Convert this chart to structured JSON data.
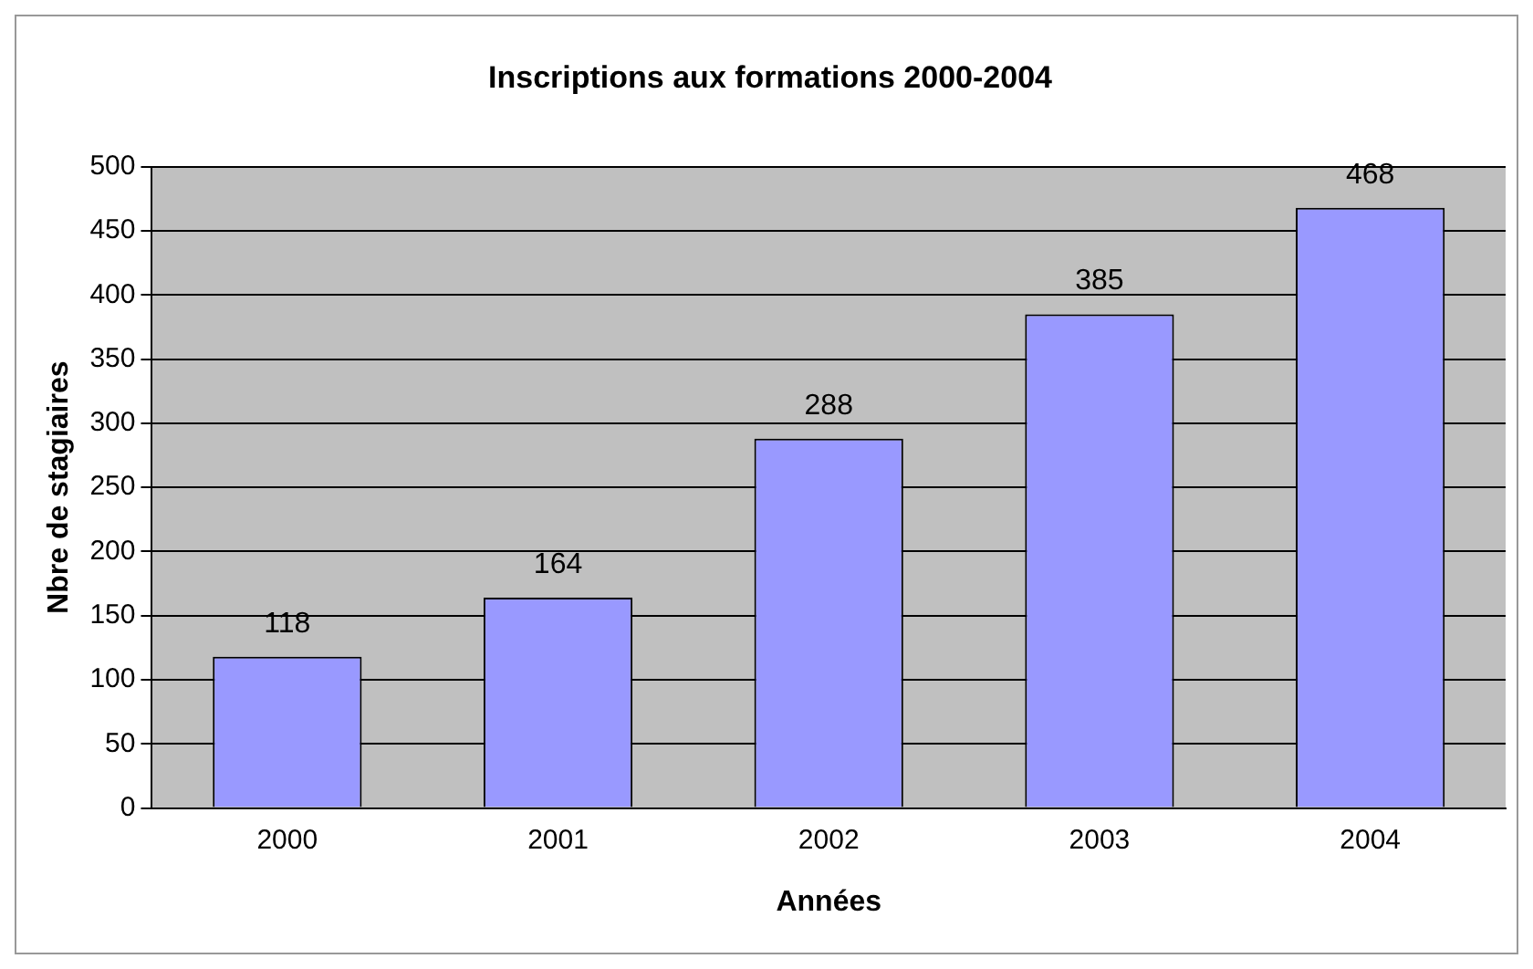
{
  "chart_data": {
    "type": "bar",
    "title": "Inscriptions aux formations 2000-2004",
    "xlabel": "Années",
    "ylabel": "Nbre de stagiaires",
    "categories": [
      "2000",
      "2001",
      "2002",
      "2003",
      "2004"
    ],
    "values": [
      118,
      164,
      288,
      385,
      468
    ],
    "color": "#9999ff",
    "ylim": [
      0,
      500
    ],
    "yticks": [
      0,
      50,
      100,
      150,
      200,
      250,
      300,
      350,
      400,
      450,
      500
    ],
    "grid": "y",
    "data_labels": true
  }
}
